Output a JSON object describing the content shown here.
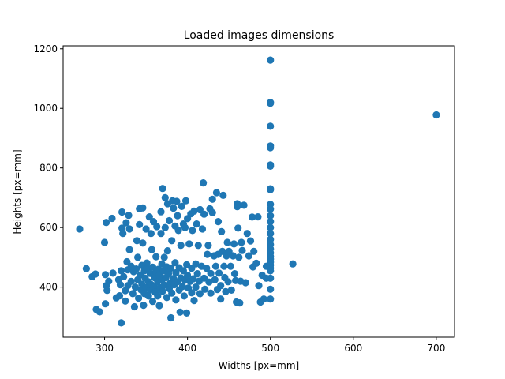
{
  "chart_data": {
    "type": "scatter",
    "title": "Loaded images dimensions",
    "xlabel": "Widths [px=mm]",
    "ylabel": "Heights [px=mm]",
    "xlim": [
      250,
      722
    ],
    "ylim": [
      232,
      1210
    ],
    "xticks": [
      300,
      400,
      500,
      600,
      700
    ],
    "yticks": [
      400,
      600,
      800,
      1000,
      1200
    ],
    "grid": false,
    "legend": "none",
    "marker_color": "#1f77b4",
    "points": [
      [
        270,
        595
      ],
      [
        278,
        462
      ],
      [
        285,
        435
      ],
      [
        289,
        444
      ],
      [
        290,
        325
      ],
      [
        294,
        317
      ],
      [
        300,
        550
      ],
      [
        301,
        442
      ],
      [
        302,
        405
      ],
      [
        303,
        389
      ],
      [
        301,
        344
      ],
      [
        302,
        617
      ],
      [
        305,
        420
      ],
      [
        309,
        631
      ],
      [
        310,
        447
      ],
      [
        314,
        364
      ],
      [
        317,
        425
      ],
      [
        318,
        371
      ],
      [
        319,
        408
      ],
      [
        320,
        455
      ],
      [
        320,
        280
      ],
      [
        321,
        598
      ],
      [
        321,
        652
      ],
      [
        322,
        580
      ],
      [
        323,
        435
      ],
      [
        325,
        388
      ],
      [
        325,
        353
      ],
      [
        326,
        616
      ],
      [
        327,
        485
      ],
      [
        328,
        458
      ],
      [
        328,
        405
      ],
      [
        329,
        641
      ],
      [
        330,
        595
      ],
      [
        330,
        526
      ],
      [
        332,
        470
      ],
      [
        332,
        419
      ],
      [
        334,
        378
      ],
      [
        335,
        452
      ],
      [
        336,
        334
      ],
      [
        337,
        400
      ],
      [
        338,
        461
      ],
      [
        339,
        556
      ],
      [
        340,
        425
      ],
      [
        340,
        500
      ],
      [
        341,
        363
      ],
      [
        342,
        663
      ],
      [
        342,
        610
      ],
      [
        343,
        441
      ],
      [
        344,
        391
      ],
      [
        345,
        473
      ],
      [
        345,
        410
      ],
      [
        346,
        666
      ],
      [
        346,
        548
      ],
      [
        347,
        339
      ],
      [
        348,
        455
      ],
      [
        348,
        378
      ],
      [
        349,
        430
      ],
      [
        350,
        398
      ],
      [
        350,
        595
      ],
      [
        351,
        481
      ],
      [
        352,
        462
      ],
      [
        353,
        370
      ],
      [
        353,
        418
      ],
      [
        354,
        636
      ],
      [
        355,
        446
      ],
      [
        355,
        392
      ],
      [
        356,
        409
      ],
      [
        356,
        580
      ],
      [
        357,
        526
      ],
      [
        358,
        467
      ],
      [
        358,
        352
      ],
      [
        359,
        620
      ],
      [
        360,
        432
      ],
      [
        360,
        400
      ],
      [
        361,
        383
      ],
      [
        362,
        451
      ],
      [
        362,
        502
      ],
      [
        363,
        603
      ],
      [
        364,
        418
      ],
      [
        364,
        370
      ],
      [
        365,
        460
      ],
      [
        366,
        440
      ],
      [
        366,
        338
      ],
      [
        367,
        398
      ],
      [
        368,
        580
      ],
      [
        368,
        653
      ],
      [
        369,
        478
      ],
      [
        369,
        425
      ],
      [
        370,
        731
      ],
      [
        370,
        386
      ],
      [
        371,
        455
      ],
      [
        372,
        500
      ],
      [
        372,
        407
      ],
      [
        373,
        700
      ],
      [
        373,
        600
      ],
      [
        374,
        432
      ],
      [
        375,
        468
      ],
      [
        375,
        365
      ],
      [
        376,
        680
      ],
      [
        376,
        522
      ],
      [
        377,
        445
      ],
      [
        378,
        395
      ],
      [
        378,
        623
      ],
      [
        379,
        413
      ],
      [
        380,
        297
      ],
      [
        380,
        464
      ],
      [
        381,
        380
      ],
      [
        381,
        556
      ],
      [
        382,
        690
      ],
      [
        383,
        429
      ],
      [
        383,
        665
      ],
      [
        384,
        408
      ],
      [
        385,
        482
      ],
      [
        385,
        605
      ],
      [
        386,
        448
      ],
      [
        386,
        357
      ],
      [
        387,
        688
      ],
      [
        388,
        418
      ],
      [
        388,
        640
      ],
      [
        389,
        590
      ],
      [
        390,
        465
      ],
      [
        390,
        390
      ],
      [
        391,
        316
      ],
      [
        392,
        540
      ],
      [
        392,
        431
      ],
      [
        393,
        671
      ],
      [
        394,
        402
      ],
      [
        395,
        455
      ],
      [
        395,
        612
      ],
      [
        396,
        370
      ],
      [
        397,
        600
      ],
      [
        397,
        423
      ],
      [
        398,
        690
      ],
      [
        399,
        313
      ],
      [
        399,
        475
      ],
      [
        400,
        440
      ],
      [
        400,
        630
      ],
      [
        401,
        397
      ],
      [
        402,
        545
      ],
      [
        403,
        419
      ],
      [
        404,
        646
      ],
      [
        405,
        463
      ],
      [
        405,
        381
      ],
      [
        406,
        590
      ],
      [
        407,
        428
      ],
      [
        408,
        655
      ],
      [
        408,
        355
      ],
      [
        410,
        478
      ],
      [
        410,
        400
      ],
      [
        411,
        612
      ],
      [
        412,
        445
      ],
      [
        413,
        540
      ],
      [
        414,
        420
      ],
      [
        415,
        660
      ],
      [
        415,
        378
      ],
      [
        417,
        470
      ],
      [
        418,
        595
      ],
      [
        419,
        750
      ],
      [
        420,
        430
      ],
      [
        420,
        645
      ],
      [
        421,
        393
      ],
      [
        423,
        463
      ],
      [
        424,
        510
      ],
      [
        425,
        540
      ],
      [
        426,
        417
      ],
      [
        427,
        663
      ],
      [
        428,
        446
      ],
      [
        428,
        380
      ],
      [
        430,
        695
      ],
      [
        430,
        650
      ],
      [
        432,
        505
      ],
      [
        433,
        425
      ],
      [
        434,
        470
      ],
      [
        435,
        717
      ],
      [
        436,
        392
      ],
      [
        437,
        510
      ],
      [
        437,
        620
      ],
      [
        438,
        447
      ],
      [
        440,
        360
      ],
      [
        440,
        405
      ],
      [
        441,
        586
      ],
      [
        442,
        520
      ],
      [
        443,
        708
      ],
      [
        444,
        470
      ],
      [
        445,
        432
      ],
      [
        446,
        385
      ],
      [
        447,
        505
      ],
      [
        448,
        550
      ],
      [
        449,
        418
      ],
      [
        450,
        520
      ],
      [
        452,
        470
      ],
      [
        453,
        390
      ],
      [
        455,
        505
      ],
      [
        456,
        545
      ],
      [
        457,
        445
      ],
      [
        458,
        422
      ],
      [
        459,
        350
      ],
      [
        460,
        680
      ],
      [
        460,
        670
      ],
      [
        461,
        598
      ],
      [
        462,
        500
      ],
      [
        463,
        347
      ],
      [
        464,
        420
      ],
      [
        465,
        550
      ],
      [
        466,
        523
      ],
      [
        468,
        675
      ],
      [
        470,
        415
      ],
      [
        472,
        580
      ],
      [
        474,
        505
      ],
      [
        476,
        555
      ],
      [
        478,
        635
      ],
      [
        479,
        468
      ],
      [
        480,
        520
      ],
      [
        483,
        480
      ],
      [
        485,
        636
      ],
      [
        486,
        405
      ],
      [
        488,
        350
      ],
      [
        490,
        440
      ],
      [
        492,
        360
      ],
      [
        495,
        470
      ],
      [
        495,
        430
      ],
      [
        500,
        1162
      ],
      [
        500,
        1020
      ],
      [
        500,
        1017
      ],
      [
        500,
        940
      ],
      [
        500,
        874
      ],
      [
        500,
        868
      ],
      [
        500,
        810
      ],
      [
        500,
        806
      ],
      [
        500,
        730
      ],
      [
        500,
        727
      ],
      [
        500,
        678
      ],
      [
        500,
        662
      ],
      [
        500,
        640
      ],
      [
        500,
        620
      ],
      [
        500,
        600
      ],
      [
        500,
        580
      ],
      [
        500,
        560
      ],
      [
        500,
        543
      ],
      [
        500,
        528
      ],
      [
        500,
        515
      ],
      [
        500,
        503
      ],
      [
        500,
        494
      ],
      [
        500,
        484
      ],
      [
        500,
        474
      ],
      [
        500,
        464
      ],
      [
        500,
        455
      ],
      [
        500,
        430
      ],
      [
        500,
        393
      ],
      [
        500,
        360
      ],
      [
        527,
        478
      ],
      [
        700,
        978
      ]
    ]
  }
}
